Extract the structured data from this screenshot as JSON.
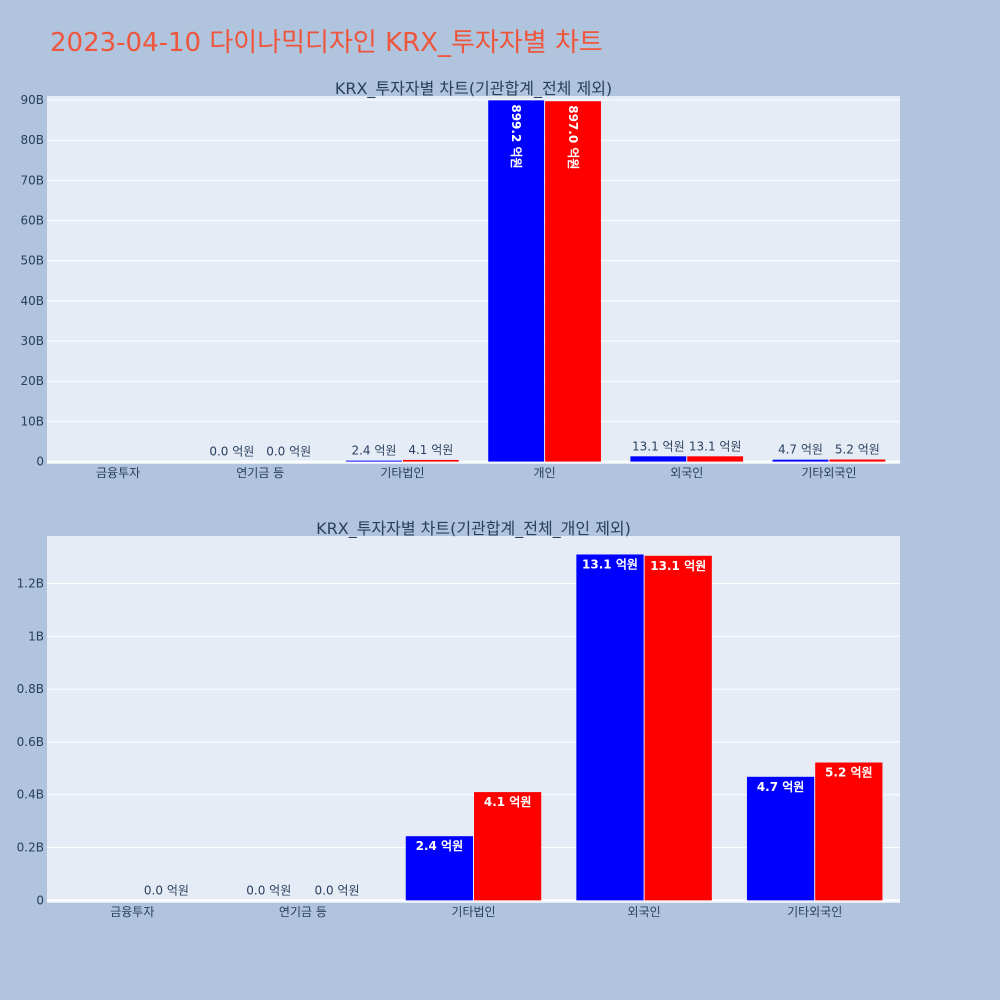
{
  "title": "2023-04-10 다이나믹디자인 KRX_투자자별 차트",
  "colors": {
    "series_1": "#0000ff",
    "series_2": "#ff0000",
    "background": "#b0c4de",
    "plot_bg": "#e5ecf6",
    "title": "#ef553b"
  },
  "chart_data": [
    {
      "type": "bar",
      "title": "KRX_투자자별 차트(기관합계_전체 제외)",
      "categories": [
        "금융투자",
        "연기금 등",
        "기타법인",
        "개인",
        "외국인",
        "기타외국인"
      ],
      "series": [
        {
          "name": "series_1",
          "values": [
            0,
            0.0,
            0.24,
            89.92,
            1.31,
            0.47
          ],
          "labels": [
            "",
            "0.0 억원",
            "2.4 억원",
            "899.2 억원",
            "13.1 억원",
            "4.7 억원"
          ]
        },
        {
          "name": "series_2",
          "values": [
            0,
            0.0,
            0.41,
            89.7,
            1.31,
            0.52
          ],
          "labels": [
            "",
            "0.0 억원",
            "4.1 억원",
            "897.0 억원",
            "13.1 억원",
            "5.2 억원"
          ]
        }
      ],
      "yticks": [
        "0",
        "10B",
        "20B",
        "30B",
        "40B",
        "50B",
        "60B",
        "70B",
        "80B",
        "90B"
      ],
      "ytick_values": [
        0,
        10,
        20,
        30,
        40,
        50,
        60,
        70,
        80,
        90
      ],
      "ylim": [
        -0.6,
        91
      ],
      "ylabel": "",
      "xlabel": ""
    },
    {
      "type": "bar",
      "title": "KRX_투자자별 차트(기관합계_전체_개인 제외)",
      "categories": [
        "금융투자",
        "연기금 등",
        "기타법인",
        "외국인",
        "기타외국인"
      ],
      "series": [
        {
          "name": "series_1",
          "values": [
            0,
            0.0,
            0.243,
            1.31,
            0.468
          ],
          "labels": [
            "",
            "0.0 억원",
            "2.4 억원",
            "13.1 억원",
            "4.7 억원"
          ]
        },
        {
          "name": "series_2",
          "values": [
            0.0,
            0.0,
            0.41,
            1.305,
            0.522
          ],
          "labels": [
            "0.0 억원",
            "0.0 억원",
            "4.1 억원",
            "13.1 억원",
            "5.2 억원"
          ]
        }
      ],
      "yticks": [
        "0",
        "0.2B",
        "0.4B",
        "0.6B",
        "0.8B",
        "1B",
        "1.2B"
      ],
      "ytick_values": [
        0,
        0.2,
        0.4,
        0.6,
        0.8,
        1.0,
        1.2
      ],
      "ylim": [
        -0.01,
        1.38
      ],
      "ylabel": "",
      "xlabel": ""
    }
  ]
}
